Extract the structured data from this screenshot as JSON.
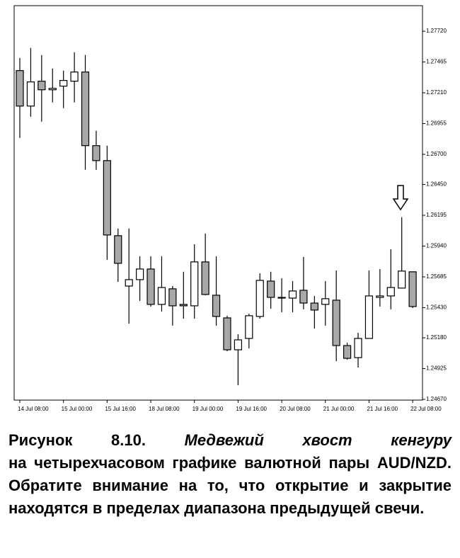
{
  "chart_data": {
    "type": "candlestick",
    "categories": [
      "14 Jul 08:00",
      null,
      null,
      null,
      "15 Jul 00:00",
      null,
      null,
      null,
      "15 Jul 16:00",
      null,
      null,
      null,
      "18 Jul 08:00",
      null,
      null,
      null,
      "19 Jul 00:00",
      null,
      null,
      null,
      "19 Jul 16:00",
      null,
      null,
      null,
      "20 Jul 08:00",
      null,
      null,
      null,
      "21 Jul 00:00",
      null,
      null,
      null,
      "21 Jul 16:00",
      null,
      null,
      null,
      "22 Jul 08:00"
    ],
    "open": [
      1.27394,
      1.271,
      1.27306,
      1.27235,
      1.27265,
      1.27306,
      1.27382,
      1.26772,
      1.26648,
      1.26026,
      1.25609,
      1.25662,
      1.2575,
      1.25457,
      1.25586,
      1.25457,
      1.25445,
      1.25809,
      1.25533,
      1.25345,
      1.25081,
      1.25175,
      1.25357,
      1.2565,
      1.25515,
      1.25509,
      1.25574,
      1.25468,
      1.25457,
      1.25492,
      1.25116,
      1.25016,
      1.25175,
      1.25515,
      1.25527,
      1.25592,
      1.25727
    ],
    "high": [
      1.27499,
      1.27582,
      1.27523,
      1.27411,
      1.27394,
      1.27546,
      1.27523,
      1.26895,
      1.26772,
      1.26085,
      1.26085,
      1.25856,
      1.25856,
      1.25856,
      1.25609,
      1.25727,
      1.25955,
      1.26044,
      1.25856,
      1.25363,
      1.2521,
      1.2538,
      1.25715,
      1.25727,
      1.25674,
      1.2565,
      1.2585,
      1.25527,
      1.2565,
      1.25738,
      1.2514,
      1.25222,
      1.25738,
      1.2575,
      1.25914,
      1.26179,
      1.25727
    ],
    "low": [
      1.26836,
      1.27012,
      1.26971,
      1.2713,
      1.27083,
      1.2713,
      1.26572,
      1.26572,
      1.25826,
      1.25644,
      1.25298,
      1.25486,
      1.25439,
      1.25398,
      1.25281,
      1.25339,
      1.25339,
      1.25533,
      1.25281,
      1.25069,
      1.24787,
      1.25093,
      1.25339,
      1.25421,
      1.25392,
      1.25392,
      1.25416,
      1.25257,
      1.25281,
      1.24987,
      1.24999,
      1.24934,
      1.25175,
      1.25439,
      1.25416,
      1.25592,
      1.25427
    ],
    "close": [
      1.271,
      1.273,
      1.27235,
      1.27247,
      1.27312,
      1.27382,
      1.26772,
      1.26648,
      1.26032,
      1.25797,
      1.25662,
      1.2575,
      1.25457,
      1.25597,
      1.25445,
      1.25445,
      1.25809,
      1.25539,
      1.25357,
      1.25081,
      1.25163,
      1.25363,
      1.25656,
      1.25515,
      1.25509,
      1.25568,
      1.25468,
      1.2541,
      1.25504,
      1.25116,
      1.2501,
      1.25175,
      1.25527,
      1.25527,
      1.25597,
      1.25733,
      1.25439
    ],
    "up_color": "#ffffff",
    "down_color": "#a8a8a8",
    "ylim": [
      1.2467,
      1.2792
    ],
    "yticks": [
      {
        "value": 1.2772,
        "label": "1.27720"
      },
      {
        "value": 1.27465,
        "label": "1.27465"
      },
      {
        "value": 1.2721,
        "label": "1.27210"
      },
      {
        "value": 1.26955,
        "label": "1.26955"
      },
      {
        "value": 1.267,
        "label": "1.26700"
      },
      {
        "value": 1.2645,
        "label": "1.26450"
      },
      {
        "value": 1.26195,
        "label": "1.26195"
      },
      {
        "value": 1.2594,
        "label": "1.25940"
      },
      {
        "value": 1.25685,
        "label": "1.25685"
      },
      {
        "value": 1.2543,
        "label": "1.25430"
      },
      {
        "value": 1.2518,
        "label": "1.25180"
      },
      {
        "value": 1.24925,
        "label": "1.24925"
      },
      {
        "value": 1.2467,
        "label": "1.24670"
      }
    ],
    "grid": false
  },
  "caption": {
    "label": "Рисунок 8.10.",
    "italic": "Медвежий хвост кенгуру",
    "text": "на четырехчасовом графике валютной пары AUD/NZD. Обратите внимание на то, что открытие и закрытие находятся в пределах диапазона предыдущей свечи."
  }
}
